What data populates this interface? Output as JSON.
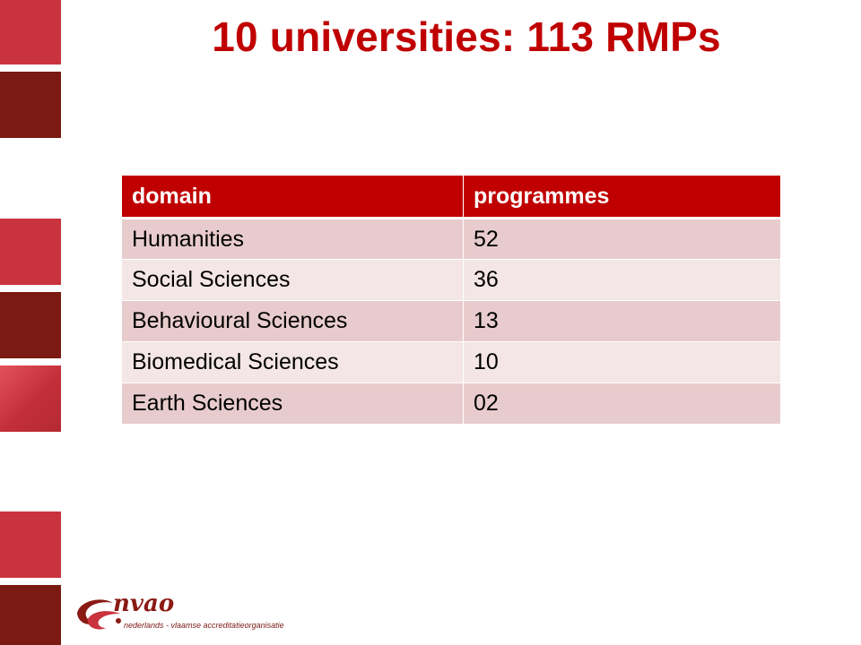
{
  "slide": {
    "title": "10 universities: 113 RMPs"
  },
  "table": {
    "headers": [
      "domain",
      "programmes"
    ],
    "rows": [
      {
        "domain": "Humanities",
        "programmes": "52"
      },
      {
        "domain": "Social Sciences",
        "programmes": "36"
      },
      {
        "domain": "Behavioural Sciences",
        "programmes": "13"
      },
      {
        "domain": "Biomedical Sciences",
        "programmes": "10"
      },
      {
        "domain": "Earth Sciences",
        "programmes": "02"
      }
    ]
  },
  "logo": {
    "name": "nvao",
    "subtitle": "nederlands - vlaamse accreditatieorganisatie"
  },
  "colors": {
    "title": "#c00000",
    "header_bg": "#c00000",
    "row_odd_bg": "#e8cccd",
    "row_even_bg": "#f4e6e6",
    "side_red": "#c9333d",
    "side_dark": "#7b1a12"
  }
}
